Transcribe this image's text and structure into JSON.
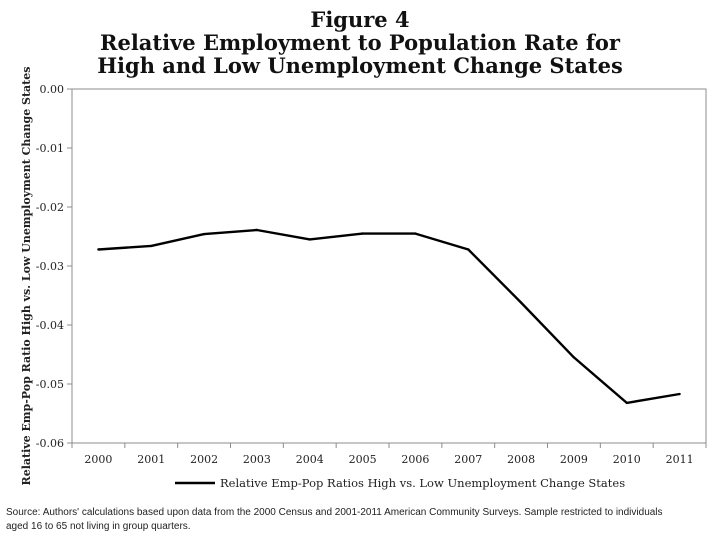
{
  "title": {
    "lines": [
      "Figure 4",
      "Relative Employment to Population Rate for",
      "High and Low Unemployment Change States"
    ]
  },
  "chart_data": {
    "type": "line",
    "title": "Figure 4 Relative Employment to Population Rate for High and Low Unemployment Change States",
    "xlabel": "",
    "ylabel": "Relative Emp-Pop Ratio High vs. Low Unemployment Change States",
    "ylim": [
      -0.06,
      0.0
    ],
    "yticks": [
      0.0,
      -0.01,
      -0.02,
      -0.03,
      -0.04,
      -0.05,
      -0.06
    ],
    "ytick_labels": [
      "0.00",
      "-0.01",
      "-0.02",
      "-0.03",
      "-0.04",
      "-0.05",
      "-0.06"
    ],
    "categories": [
      "2000",
      "2001",
      "2002",
      "2003",
      "2004",
      "2005",
      "2006",
      "2007",
      "2008",
      "2009",
      "2010",
      "2011"
    ],
    "series": [
      {
        "name": "Relative Emp-Pop Ratios High vs. Low Unemployment Change States",
        "color": "#000000",
        "values": [
          -0.0272,
          -0.0266,
          -0.0246,
          -0.0239,
          -0.0255,
          -0.0245,
          -0.0245,
          -0.0272,
          -0.0362,
          -0.0455,
          -0.0532,
          -0.0517
        ]
      }
    ],
    "grid": false,
    "legend": "bottom"
  },
  "source": {
    "line1": "Source:  Authors' calculations based upon data from the 2000 Census and 2001-2011 American Community Surveys.  Sample restricted to individuals",
    "line2": "aged 16 to 65 not living in group quarters."
  }
}
